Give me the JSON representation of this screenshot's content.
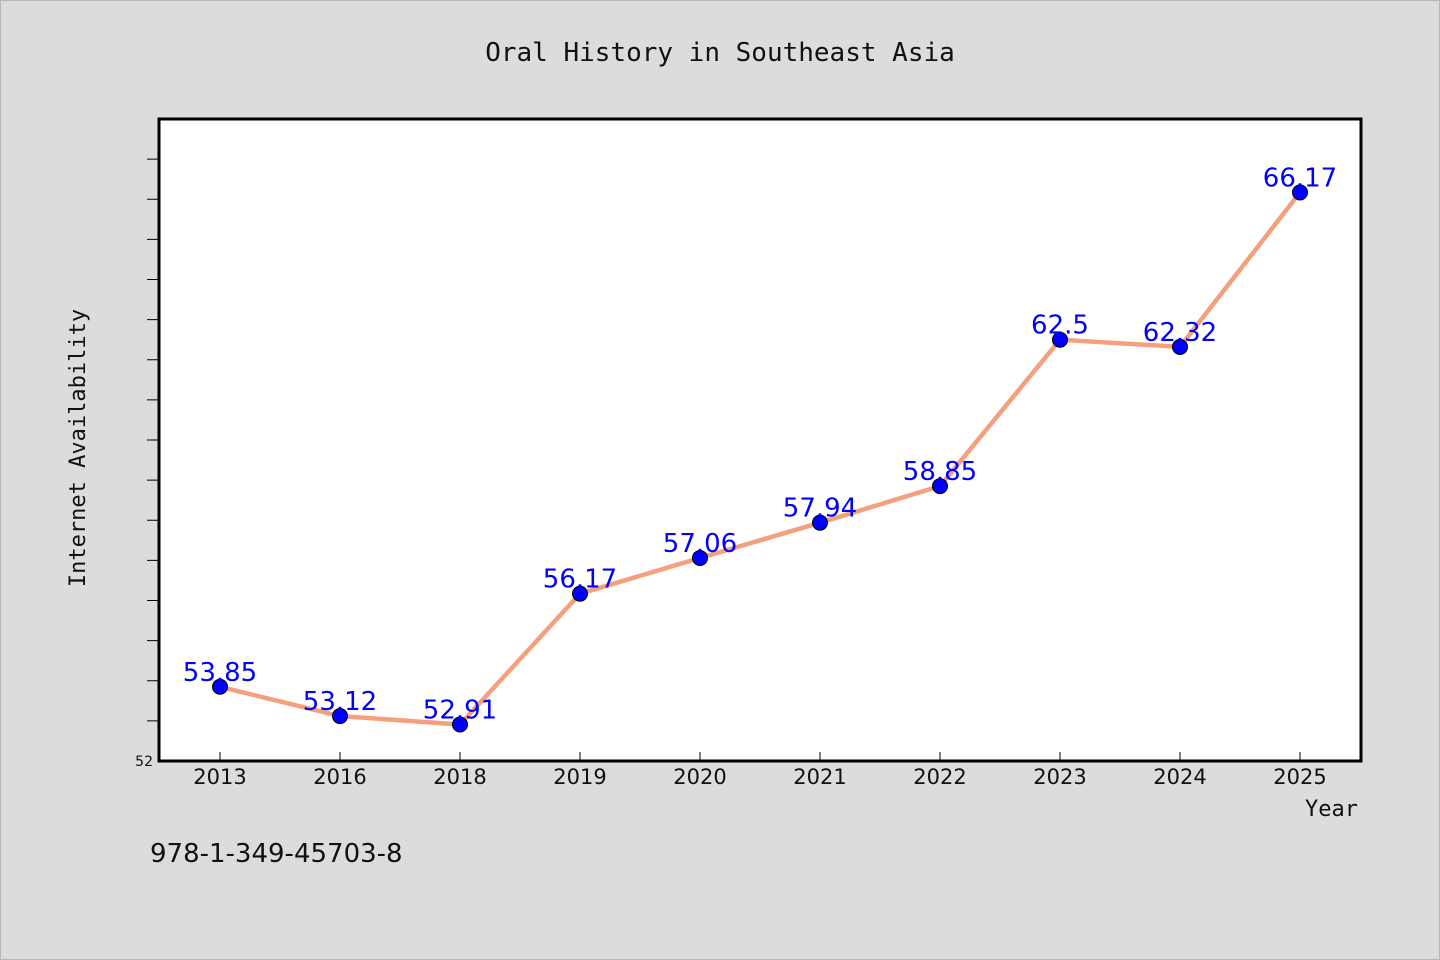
{
  "chart_data": {
    "type": "line",
    "title": "Oral History in Southeast Asia",
    "xlabel": "Year",
    "ylabel": "Internet Availability",
    "categories": [
      "2013",
      "2016",
      "2018",
      "2019",
      "2020",
      "2021",
      "2022",
      "2023",
      "2024",
      "2025"
    ],
    "series": [
      {
        "values": [
          53.85,
          53.12,
          52.91,
          56.17,
          57.06,
          57.94,
          58.85,
          62.5,
          62.32,
          66.17
        ],
        "labels": [
          "53.85",
          "53.12",
          "52.91",
          "56.17",
          "57.06",
          "57.94",
          "58.85",
          "62.5",
          "62.32",
          "66.17"
        ],
        "line_color": "#f4a07f",
        "marker_color": "#0000ff"
      }
    ],
    "ylim": [
      52,
      68
    ],
    "ytick_labels": [
      "52"
    ],
    "grid": false
  },
  "footer": {
    "isbn": "978-1-349-45703-8"
  }
}
